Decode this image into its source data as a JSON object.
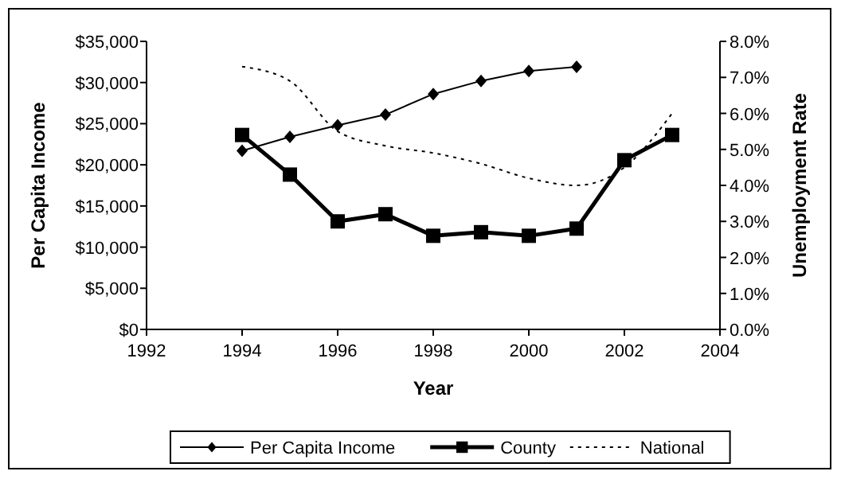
{
  "chart_data": {
    "type": "line",
    "xlabel": "Year",
    "ylabel": "Per Capita Income",
    "y2label": "Unemployment Rate",
    "x": [
      1994,
      1995,
      1996,
      1997,
      1998,
      1999,
      2000,
      2001,
      2002,
      2003
    ],
    "xlim": [
      1992,
      2004
    ],
    "xticks": [
      1992,
      1994,
      1996,
      1998,
      2000,
      2002,
      2004
    ],
    "ylim": [
      0,
      35000
    ],
    "yticks": [
      {
        "value": 0,
        "label": "$0"
      },
      {
        "value": 5000,
        "label": "$5,000"
      },
      {
        "value": 10000,
        "label": "$10,000"
      },
      {
        "value": 15000,
        "label": "$15,000"
      },
      {
        "value": 20000,
        "label": "$20,000"
      },
      {
        "value": 25000,
        "label": "$25,000"
      },
      {
        "value": 30000,
        "label": "$30,000"
      },
      {
        "value": 35000,
        "label": "$35,000"
      }
    ],
    "y2lim": [
      0,
      8
    ],
    "y2ticks": [
      {
        "value": 0,
        "label": "0.0%"
      },
      {
        "value": 1,
        "label": "1.0%"
      },
      {
        "value": 2,
        "label": "2.0%"
      },
      {
        "value": 3,
        "label": "3.0%"
      },
      {
        "value": 4,
        "label": "4.0%"
      },
      {
        "value": 5,
        "label": "5.0%"
      },
      {
        "value": 6,
        "label": "6.0%"
      },
      {
        "value": 7,
        "label": "7.0%"
      },
      {
        "value": 8,
        "label": "8.0%"
      }
    ],
    "grid": false,
    "legend": "bottom",
    "series": [
      {
        "name": "Per Capita Income",
        "color": "#000000",
        "marker": "diamond",
        "line_style": "solid",
        "values": [
          21700,
          23400,
          24800,
          26100,
          28600,
          30200,
          31400,
          31900,
          null,
          null
        ]
      },
      {
        "name": "County",
        "color": "#000000",
        "marker": "square",
        "line_style": "solid",
        "axis": "y2",
        "values": [
          5.4,
          4.3,
          3.0,
          3.2,
          2.6,
          2.7,
          2.6,
          2.8,
          4.7,
          5.4
        ]
      },
      {
        "name": "National",
        "color": "#000000",
        "marker": "none",
        "line_style": "dotted",
        "axis": "y2",
        "values": [
          7.3,
          6.9,
          5.5,
          5.1,
          4.9,
          4.6,
          4.2,
          4.0,
          4.5,
          6.0
        ]
      }
    ]
  }
}
